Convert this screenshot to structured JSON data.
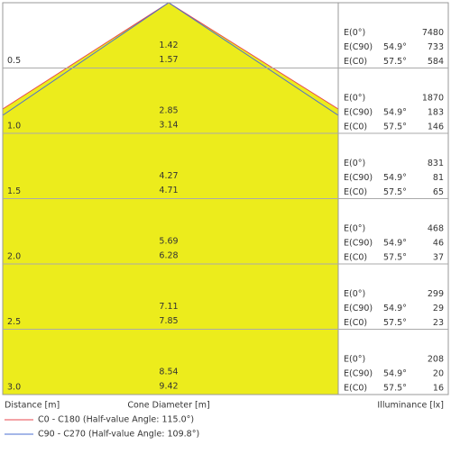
{
  "rows": [
    {
      "distance": "0.5",
      "diameters": [
        "1.42",
        "1.57"
      ],
      "illuminance": [
        {
          "label": "E(0°)",
          "value": "7480"
        },
        {
          "label": "E(C90)",
          "angle": "54.9°",
          "value": "733"
        },
        {
          "label": "E(C0)",
          "angle": "57.5°",
          "value": "584"
        }
      ]
    },
    {
      "distance": "1.0",
      "diameters": [
        "2.85",
        "3.14"
      ],
      "illuminance": [
        {
          "label": "E(0°)",
          "value": "1870"
        },
        {
          "label": "E(C90)",
          "angle": "54.9°",
          "value": "183"
        },
        {
          "label": "E(C0)",
          "angle": "57.5°",
          "value": "146"
        }
      ]
    },
    {
      "distance": "1.5",
      "diameters": [
        "4.27",
        "4.71"
      ],
      "illuminance": [
        {
          "label": "E(0°)",
          "value": "831"
        },
        {
          "label": "E(C90)",
          "angle": "54.9°",
          "value": "81"
        },
        {
          "label": "E(C0)",
          "angle": "57.5°",
          "value": "65"
        }
      ]
    },
    {
      "distance": "2.0",
      "diameters": [
        "5.69",
        "6.28"
      ],
      "illuminance": [
        {
          "label": "E(0°)",
          "value": "468"
        },
        {
          "label": "E(C90)",
          "angle": "54.9°",
          "value": "46"
        },
        {
          "label": "E(C0)",
          "angle": "57.5°",
          "value": "37"
        }
      ]
    },
    {
      "distance": "2.5",
      "diameters": [
        "7.11",
        "7.85"
      ],
      "illuminance": [
        {
          "label": "E(0°)",
          "value": "299"
        },
        {
          "label": "E(C90)",
          "angle": "54.9°",
          "value": "29"
        },
        {
          "label": "E(C0)",
          "angle": "57.5°",
          "value": "23"
        }
      ]
    },
    {
      "distance": "3.0",
      "diameters": [
        "8.54",
        "9.42"
      ],
      "illuminance": [
        {
          "label": "E(0°)",
          "value": "208"
        },
        {
          "label": "E(C90)",
          "angle": "54.9°",
          "value": "20"
        },
        {
          "label": "E(C0)",
          "angle": "57.5°",
          "value": "16"
        }
      ]
    }
  ],
  "footer": {
    "distance": "Distance [m]",
    "diameter": "Cone Diameter [m]",
    "illuminance": "Illuminance [lx]"
  },
  "legend": [
    {
      "label": "C0 - C180 (Half-value Angle: 115.0°)",
      "color": "#e8474c"
    },
    {
      "label": "C90 - C270 (Half-value Angle: 109.8°)",
      "color": "#4a6fd1"
    }
  ]
}
